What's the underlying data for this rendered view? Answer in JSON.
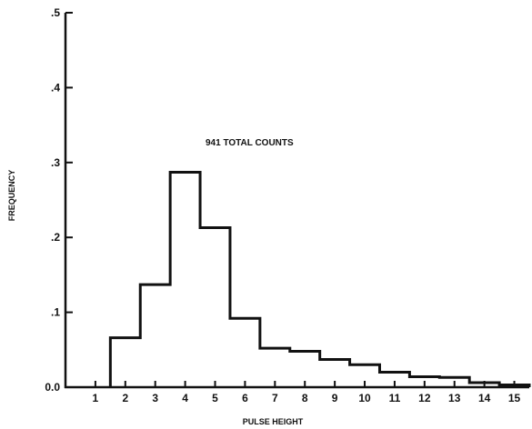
{
  "chart_data": {
    "type": "bar",
    "style": "step-histogram",
    "x": [
      1,
      2,
      3,
      4,
      5,
      6,
      7,
      8,
      9,
      10,
      11,
      12,
      13,
      14,
      15
    ],
    "x_tick_labels": [
      "1",
      "2",
      "3",
      "4",
      "5",
      "6",
      "7",
      "8",
      "9",
      "10",
      "11",
      "12",
      "13",
      "14",
      "15"
    ],
    "values": [
      0.0,
      0.066,
      0.137,
      0.287,
      0.213,
      0.092,
      0.052,
      0.048,
      0.037,
      0.03,
      0.02,
      0.014,
      0.013,
      0.006,
      0.003
    ],
    "xlabel": "PULSE HEIGHT",
    "ylabel": "FREQUENCY",
    "xlim": [
      0,
      15.5
    ],
    "ylim": [
      0,
      0.5
    ],
    "y_ticks": [
      0,
      0.1,
      0.2,
      0.3,
      0.4,
      0.5
    ],
    "y_tick_labels": [
      "0.0",
      ".1",
      ".2",
      ".3",
      ".4",
      ".5"
    ],
    "annotation": "941 TOTAL COUNTS",
    "grid": false,
    "line_color": "#111111"
  }
}
